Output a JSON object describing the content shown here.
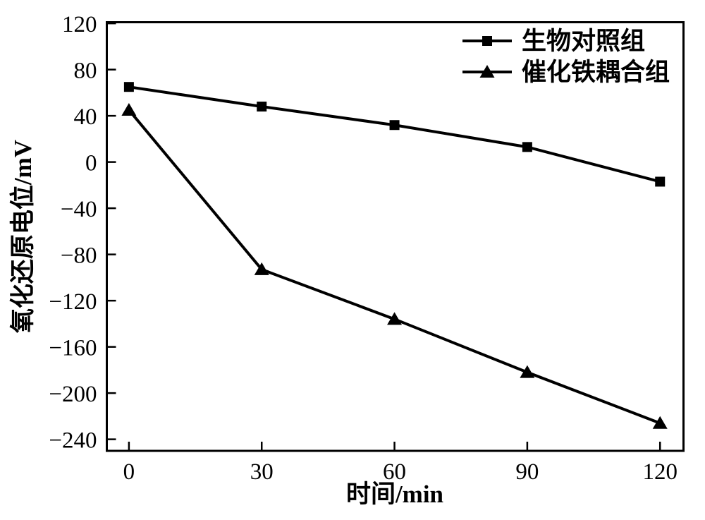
{
  "chart_data": {
    "type": "line",
    "x": [
      0,
      30,
      60,
      90,
      120
    ],
    "series": [
      {
        "name": "生物对照组",
        "marker": "square",
        "values": [
          65,
          48,
          32,
          13,
          -17
        ]
      },
      {
        "name": "催化铁耦合组",
        "marker": "triangle",
        "values": [
          45,
          -93,
          -136,
          -182,
          -226
        ]
      }
    ],
    "title": "",
    "xlabel": "时间/min",
    "ylabel": "氧化还原电位/mV",
    "x_ticks": [
      0,
      30,
      60,
      90,
      120
    ],
    "y_ticks": [
      120,
      80,
      40,
      0,
      -40,
      -80,
      -120,
      -160,
      -200,
      -240
    ],
    "xlim": [
      -5,
      125.3
    ],
    "ylim": [
      -250,
      121
    ],
    "grid": false,
    "legend_position": "top-right-inside",
    "line_color": "#000000",
    "background": "#ffffff"
  }
}
